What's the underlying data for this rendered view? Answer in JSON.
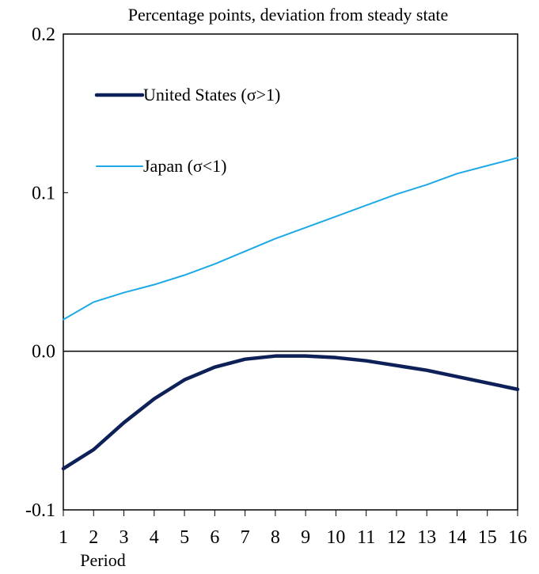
{
  "chart_data": {
    "type": "line",
    "title": "Percentage points, deviation from steady state",
    "xlabel": "Period",
    "ylabel": "",
    "x": [
      1,
      2,
      3,
      4,
      5,
      6,
      7,
      8,
      9,
      10,
      11,
      12,
      13,
      14,
      15,
      16
    ],
    "ylim": [
      -0.1,
      0.2
    ],
    "yticks": [
      "-0.1",
      "0.0",
      "0.1",
      "0.2"
    ],
    "grid": false,
    "legend_position": "upper-left, inside plot",
    "series": [
      {
        "name": "United States (σ>1)",
        "color": "#0e2058",
        "line_style": "thick",
        "values": [
          -0.074,
          -0.062,
          -0.045,
          -0.03,
          -0.018,
          -0.01,
          -0.005,
          -0.003,
          -0.003,
          -0.004,
          -0.006,
          -0.009,
          -0.012,
          -0.016,
          -0.02,
          -0.024
        ]
      },
      {
        "name": "Japan (σ<1)",
        "color": "#1ca9e6",
        "line_style": "thin",
        "values": [
          0.02,
          0.031,
          0.037,
          0.042,
          0.048,
          0.055,
          0.063,
          0.071,
          0.078,
          0.085,
          0.092,
          0.099,
          0.105,
          0.112,
          0.117,
          0.122
        ]
      }
    ]
  }
}
